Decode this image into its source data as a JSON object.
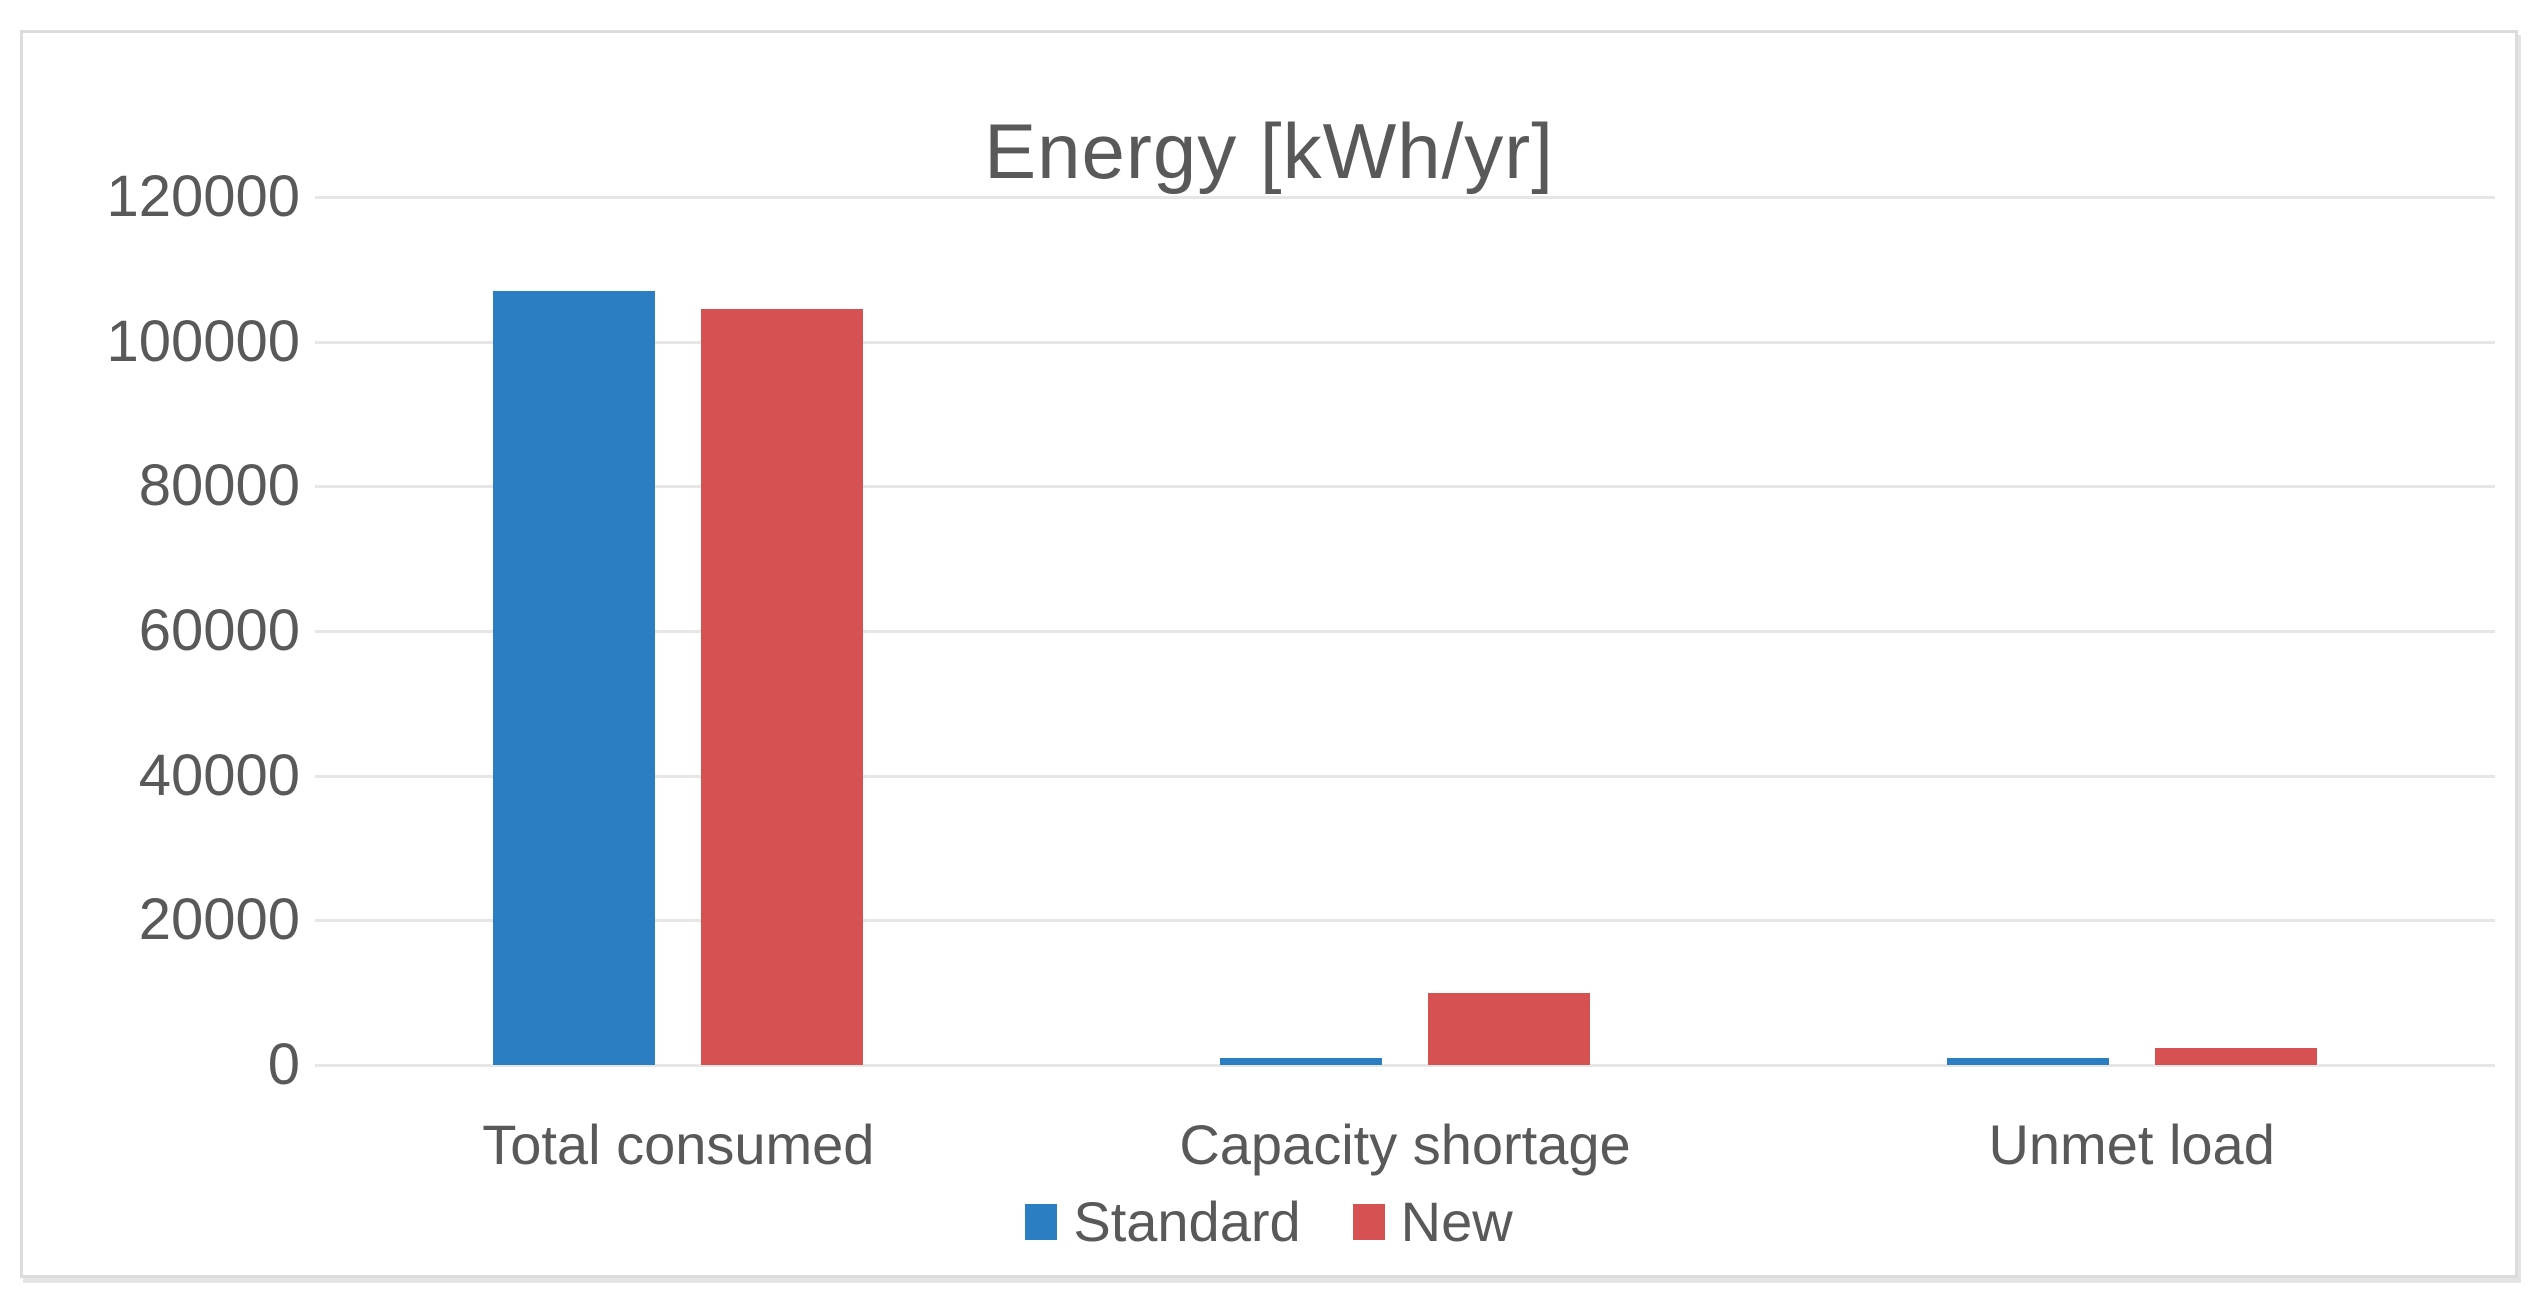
{
  "chart_data": {
    "type": "bar",
    "title": "Energy [kWh/yr]",
    "categories": [
      "Total consumed",
      "Capacity shortage",
      "Unmet load"
    ],
    "series": [
      {
        "name": "Standard",
        "color": "#2A7EC1",
        "values": [
          107000,
          1000,
          1000
        ]
      },
      {
        "name": "New",
        "color": "#D65151",
        "values": [
          104500,
          10000,
          2300
        ]
      }
    ],
    "xlabel": "",
    "ylabel": "",
    "ylim": [
      0,
      120000
    ],
    "ytick_step": 20000,
    "ytick_labels": [
      "0",
      "20000",
      "40000",
      "60000",
      "80000",
      "100000",
      "120000"
    ],
    "grid": true,
    "legend_position": "bottom"
  },
  "colors": {
    "text": "#595959",
    "gridline": "#e6e6e6",
    "frame_border": "#dcdcdc",
    "background": "#ffffff"
  }
}
